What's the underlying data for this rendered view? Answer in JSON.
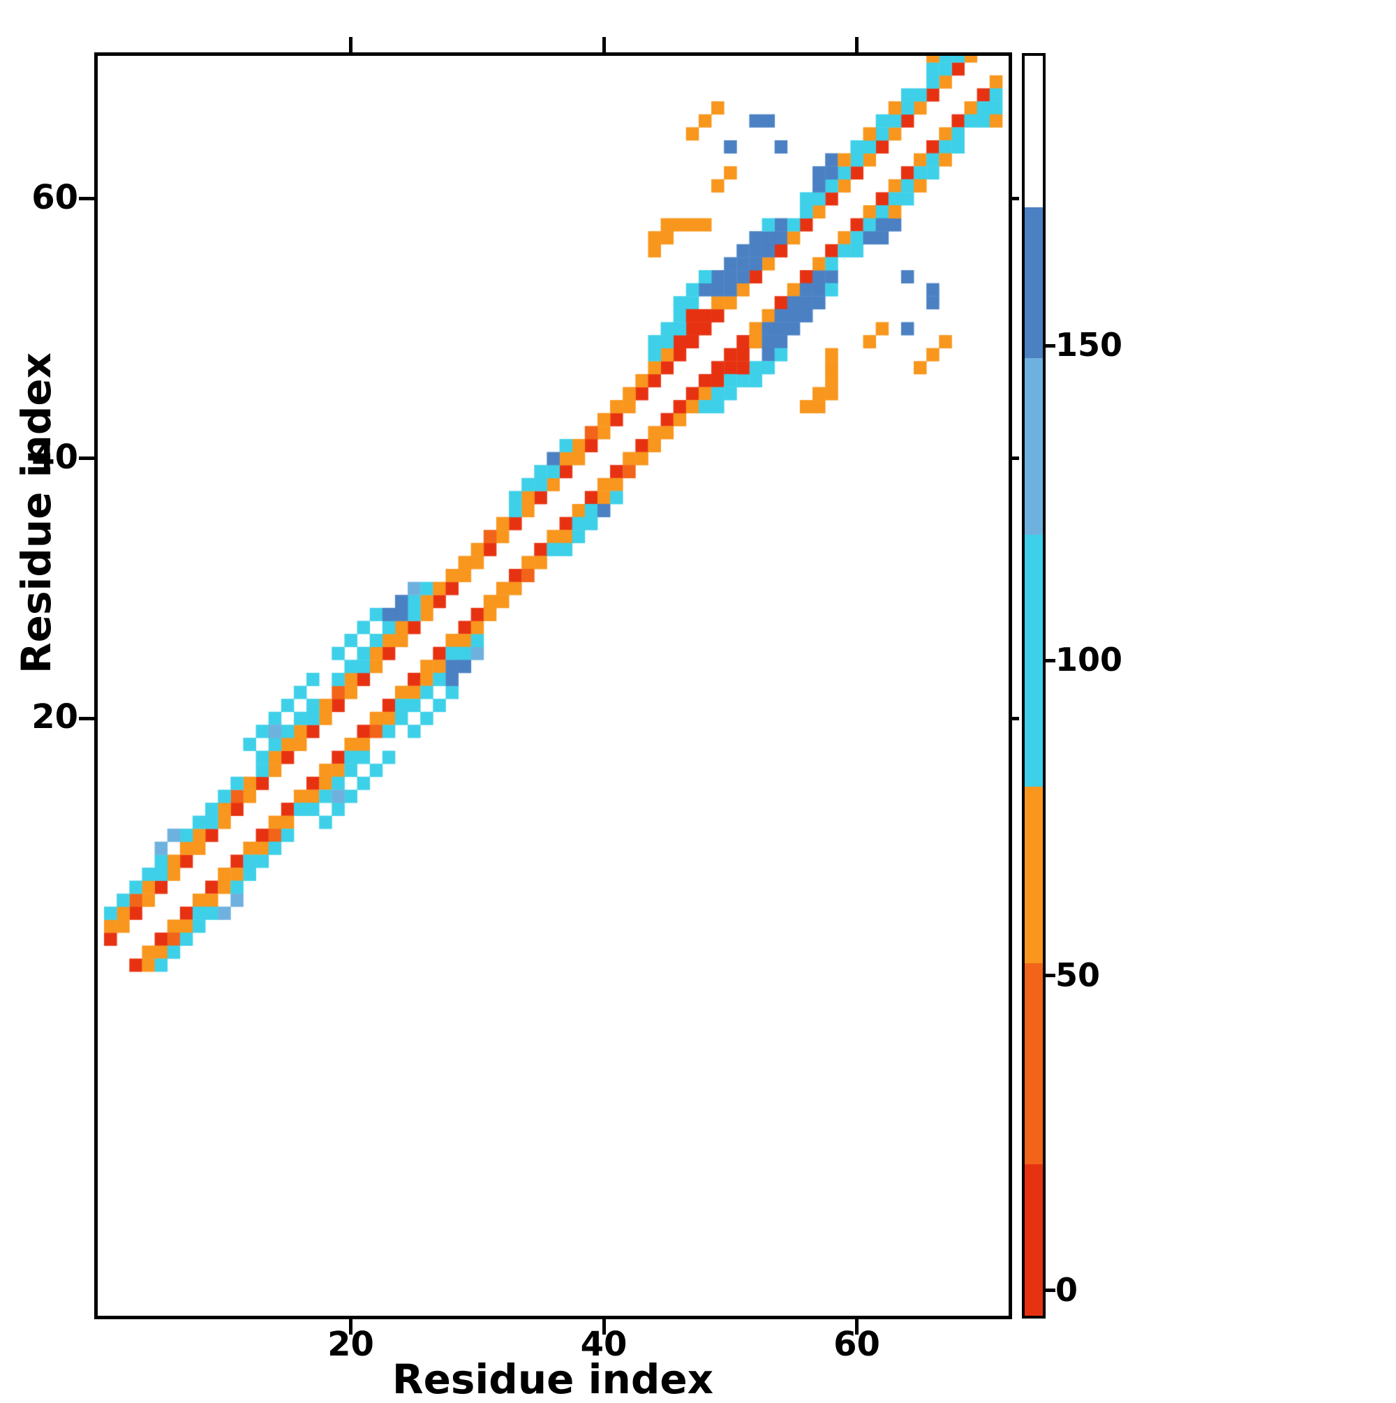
{
  "figure": {
    "background": "#ffffff"
  },
  "chart_data": {
    "type": "heatmap",
    "title": "",
    "xlabel": "Residue index",
    "ylabel": "Residue index",
    "x_ticks": [
      20,
      40,
      60
    ],
    "y_ticks": [
      20,
      40,
      60
    ],
    "xlim": [
      0,
      72
    ],
    "ylim": [
      -26,
      71
    ],
    "grid": false,
    "legend": "none",
    "colorbar": {
      "position": "right",
      "ticks": [
        0,
        50,
        100,
        150
      ],
      "vmin": -4,
      "vmax": 196,
      "stops": [
        {
          "from": -4,
          "to": 20,
          "color": "#e73212"
        },
        {
          "from": 20,
          "to": 52,
          "color": "#f26419"
        },
        {
          "from": 52,
          "to": 80,
          "color": "#f8961d"
        },
        {
          "from": 80,
          "to": 120,
          "color": "#3ed0e8"
        },
        {
          "from": 120,
          "to": 148,
          "color": "#6fb1de"
        },
        {
          "from": 148,
          "to": 172,
          "color": "#4b81c3"
        },
        {
          "from": 172,
          "to": 196,
          "color": "#ffffff"
        }
      ]
    },
    "symmetric": true,
    "contacts": [
      [
        1,
        3,
        8
      ],
      [
        2,
        4,
        60
      ],
      [
        3,
        5,
        8
      ],
      [
        4,
        6,
        60
      ],
      [
        5,
        7,
        8
      ],
      [
        6,
        8,
        60
      ],
      [
        7,
        9,
        8
      ],
      [
        8,
        10,
        60
      ],
      [
        9,
        11,
        8
      ],
      [
        10,
        12,
        60
      ],
      [
        11,
        13,
        8
      ],
      [
        12,
        14,
        60
      ],
      [
        13,
        15,
        8
      ],
      [
        14,
        16,
        60
      ],
      [
        15,
        17,
        8
      ],
      [
        16,
        18,
        60
      ],
      [
        17,
        19,
        8
      ],
      [
        18,
        20,
        60
      ],
      [
        19,
        21,
        8
      ],
      [
        20,
        22,
        60
      ],
      [
        21,
        23,
        8
      ],
      [
        22,
        24,
        60
      ],
      [
        23,
        25,
        8
      ],
      [
        24,
        26,
        60
      ],
      [
        25,
        27,
        8
      ],
      [
        26,
        28,
        60
      ],
      [
        27,
        29,
        8
      ],
      [
        1,
        4,
        65
      ],
      [
        2,
        5,
        65
      ],
      [
        3,
        6,
        45
      ],
      [
        4,
        7,
        65
      ],
      [
        5,
        8,
        100
      ],
      [
        6,
        9,
        65
      ],
      [
        7,
        10,
        65
      ],
      [
        8,
        11,
        65
      ],
      [
        9,
        12,
        100
      ],
      [
        10,
        13,
        65
      ],
      [
        11,
        14,
        45
      ],
      [
        12,
        15,
        65
      ],
      [
        13,
        16,
        100
      ],
      [
        14,
        17,
        65
      ],
      [
        15,
        18,
        65
      ],
      [
        16,
        19,
        65
      ],
      [
        17,
        20,
        100
      ],
      [
        18,
        21,
        65
      ],
      [
        19,
        22,
        45
      ],
      [
        20,
        23,
        65
      ],
      [
        21,
        24,
        100
      ],
      [
        22,
        25,
        65
      ],
      [
        23,
        26,
        65
      ],
      [
        24,
        27,
        65
      ],
      [
        25,
        28,
        100
      ],
      [
        26,
        29,
        65
      ],
      [
        1,
        5,
        100
      ],
      [
        2,
        6,
        105
      ],
      [
        3,
        7,
        100
      ],
      [
        4,
        8,
        105
      ],
      [
        5,
        9,
        100
      ],
      [
        7,
        11,
        100
      ],
      [
        8,
        12,
        105
      ],
      [
        9,
        13,
        100
      ],
      [
        10,
        14,
        105
      ],
      [
        11,
        15,
        100
      ],
      [
        13,
        17,
        100
      ],
      [
        14,
        18,
        105
      ],
      [
        15,
        19,
        100
      ],
      [
        16,
        20,
        105
      ],
      [
        17,
        21,
        100
      ],
      [
        19,
        23,
        100
      ],
      [
        20,
        24,
        105
      ],
      [
        21,
        25,
        100
      ],
      [
        22,
        26,
        105
      ],
      [
        23,
        27,
        100
      ],
      [
        25,
        29,
        100
      ],
      [
        12,
        18,
        110
      ],
      [
        13,
        19,
        110
      ],
      [
        14,
        20,
        110
      ],
      [
        15,
        21,
        110
      ],
      [
        16,
        22,
        110
      ],
      [
        17,
        23,
        110
      ],
      [
        19,
        25,
        110
      ],
      [
        20,
        26,
        110
      ],
      [
        21,
        27,
        110
      ],
      [
        22,
        28,
        110
      ],
      [
        5,
        10,
        130
      ],
      [
        6,
        11,
        130
      ],
      [
        14,
        19,
        130
      ],
      [
        23,
        28,
        155
      ],
      [
        24,
        28,
        160
      ],
      [
        24,
        29,
        155
      ],
      [
        25,
        30,
        130
      ],
      [
        26,
        30,
        100
      ],
      [
        27,
        30,
        65
      ],
      [
        28,
        30,
        8
      ],
      [
        28,
        31,
        65
      ],
      [
        29,
        31,
        60
      ],
      [
        29,
        32,
        65
      ],
      [
        30,
        32,
        60
      ],
      [
        31,
        33,
        8
      ],
      [
        32,
        34,
        60
      ],
      [
        33,
        35,
        8
      ],
      [
        34,
        36,
        60
      ],
      [
        35,
        37,
        8
      ],
      [
        36,
        38,
        60
      ],
      [
        37,
        39,
        8
      ],
      [
        38,
        40,
        60
      ],
      [
        39,
        41,
        8
      ],
      [
        40,
        42,
        60
      ],
      [
        41,
        43,
        8
      ],
      [
        42,
        44,
        60
      ],
      [
        43,
        45,
        8
      ],
      [
        30,
        33,
        65
      ],
      [
        31,
        34,
        45
      ],
      [
        32,
        35,
        65
      ],
      [
        33,
        36,
        100
      ],
      [
        34,
        37,
        65
      ],
      [
        35,
        38,
        100
      ],
      [
        36,
        39,
        100
      ],
      [
        37,
        40,
        65
      ],
      [
        38,
        41,
        65
      ],
      [
        39,
        42,
        45
      ],
      [
        40,
        43,
        65
      ],
      [
        41,
        44,
        65
      ],
      [
        42,
        45,
        65
      ],
      [
        43,
        46,
        65
      ],
      [
        33,
        37,
        100
      ],
      [
        34,
        38,
        105
      ],
      [
        35,
        39,
        100
      ],
      [
        36,
        40,
        155
      ],
      [
        37,
        41,
        100
      ],
      [
        44,
        46,
        8
      ],
      [
        45,
        47,
        8
      ],
      [
        46,
        48,
        5
      ],
      [
        47,
        49,
        8
      ],
      [
        48,
        50,
        5
      ],
      [
        49,
        51,
        8
      ],
      [
        50,
        52,
        60
      ],
      [
        51,
        53,
        60
      ],
      [
        52,
        54,
        8
      ],
      [
        53,
        55,
        60
      ],
      [
        54,
        56,
        8
      ],
      [
        44,
        47,
        55
      ],
      [
        45,
        48,
        65
      ],
      [
        46,
        49,
        5
      ],
      [
        47,
        50,
        5
      ],
      [
        48,
        51,
        8
      ],
      [
        49,
        52,
        65
      ],
      [
        52,
        55,
        155
      ],
      [
        53,
        56,
        155
      ],
      [
        54,
        57,
        155
      ],
      [
        44,
        48,
        100
      ],
      [
        45,
        49,
        100
      ],
      [
        46,
        50,
        100
      ],
      [
        44,
        49,
        105
      ],
      [
        45,
        50,
        105
      ],
      [
        46,
        51,
        100
      ],
      [
        47,
        52,
        100
      ],
      [
        46,
        52,
        105
      ],
      [
        48,
        53,
        160
      ],
      [
        49,
        53,
        155
      ],
      [
        49,
        54,
        160
      ],
      [
        50,
        53,
        150
      ],
      [
        50,
        54,
        162
      ],
      [
        50,
        55,
        155
      ],
      [
        51,
        54,
        158
      ],
      [
        51,
        55,
        162
      ],
      [
        51,
        56,
        155
      ],
      [
        52,
        56,
        160
      ],
      [
        52,
        57,
        152
      ],
      [
        53,
        57,
        155
      ],
      [
        54,
        58,
        150
      ],
      [
        47,
        53,
        100
      ],
      [
        48,
        54,
        105
      ],
      [
        53,
        58,
        100
      ],
      [
        47,
        51,
        5
      ],
      [
        44,
        56,
        65
      ],
      [
        44,
        57,
        70
      ],
      [
        45,
        57,
        65
      ],
      [
        45,
        58,
        60
      ],
      [
        46,
        58,
        65
      ],
      [
        47,
        58,
        55
      ],
      [
        48,
        58,
        65
      ],
      [
        55,
        57,
        60
      ],
      [
        56,
        58,
        8
      ],
      [
        57,
        59,
        60
      ],
      [
        58,
        60,
        8
      ],
      [
        59,
        61,
        60
      ],
      [
        60,
        62,
        8
      ],
      [
        61,
        63,
        60
      ],
      [
        62,
        64,
        8
      ],
      [
        63,
        65,
        60
      ],
      [
        64,
        66,
        8
      ],
      [
        65,
        67,
        60
      ],
      [
        66,
        68,
        8
      ],
      [
        67,
        69,
        60
      ],
      [
        68,
        70,
        8
      ],
      [
        69,
        71,
        60
      ],
      [
        55,
        58,
        100
      ],
      [
        56,
        59,
        100
      ],
      [
        57,
        60,
        105
      ],
      [
        58,
        61,
        100
      ],
      [
        59,
        62,
        100
      ],
      [
        60,
        63,
        105
      ],
      [
        61,
        64,
        100
      ],
      [
        62,
        65,
        100
      ],
      [
        63,
        66,
        105
      ],
      [
        64,
        67,
        100
      ],
      [
        65,
        68,
        100
      ],
      [
        66,
        69,
        105
      ],
      [
        67,
        70,
        100
      ],
      [
        68,
        71,
        100
      ],
      [
        56,
        60,
        105
      ],
      [
        58,
        62,
        155
      ],
      [
        60,
        64,
        105
      ],
      [
        62,
        66,
        105
      ],
      [
        64,
        68,
        105
      ],
      [
        66,
        70,
        105
      ],
      [
        57,
        61,
        155
      ],
      [
        57,
        62,
        150
      ],
      [
        58,
        63,
        150
      ],
      [
        50,
        64,
        160
      ],
      [
        54,
        64,
        155
      ],
      [
        52,
        66,
        155
      ],
      [
        53,
        66,
        158
      ],
      [
        49,
        61,
        65
      ],
      [
        50,
        62,
        60
      ],
      [
        47,
        65,
        70
      ],
      [
        48,
        66,
        65
      ],
      [
        49,
        67,
        55
      ],
      [
        67,
        71,
        105
      ],
      [
        66,
        71,
        60
      ],
      [
        59,
        63,
        65
      ],
      [
        61,
        65,
        65
      ],
      [
        63,
        67,
        65
      ]
    ]
  }
}
